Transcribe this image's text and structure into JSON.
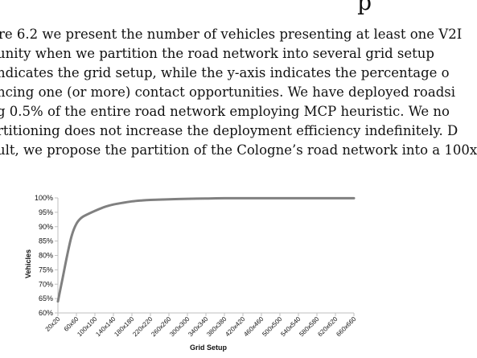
{
  "page": {
    "header_fragment": "p",
    "lines": [
      "re 6.2 we present the number of vehicles presenting at least one V2I",
      "unity when we partition the road network into several grid setup",
      "ndicates the grid setup, while the y-axis indicates the percentage o",
      "ncing one (or more) contact opportunities.  We have deployed roadsi",
      "g 0.5% of the entire road network employing MCP heuristic.  We no",
      "rtitioning does not increase the deployment efficiency indefinitely.  D",
      "ult, we propose the partition of the Cologne’s road network into a 100x"
    ]
  },
  "chart_data": {
    "type": "line",
    "xlabel": "Grid Setup",
    "ylabel": "Vehicles",
    "categories": [
      "20x20",
      "60x60",
      "100x100",
      "140x140",
      "180x180",
      "220x220",
      "260x260",
      "300x300",
      "340x340",
      "380x380",
      "420x420",
      "460x460",
      "500x500",
      "540x540",
      "580x580",
      "620x620",
      "660x660"
    ],
    "y_ticks": [
      "60%",
      "65%",
      "70%",
      "75%",
      "80%",
      "85%",
      "90%",
      "95%",
      "100%"
    ],
    "ylim": [
      60,
      100
    ],
    "series": [
      {
        "x": [
          20,
          30,
          40,
          50,
          60,
          70,
          80,
          100,
          120,
          140,
          160,
          180,
          200,
          220,
          260,
          300,
          340,
          380,
          420,
          460,
          500,
          540,
          580,
          620,
          660
        ],
        "values": [
          64,
          72,
          80,
          87,
          91,
          93,
          94,
          95.5,
          96.8,
          97.7,
          98.3,
          98.8,
          99.1,
          99.3,
          99.5,
          99.7,
          99.8,
          99.9,
          99.9,
          99.9,
          99.9,
          99.9,
          99.9,
          99.9,
          99.9
        ]
      }
    ],
    "grid": false,
    "legend": "none",
    "line_color": "#808080",
    "axis_color": "#bfbfbf"
  }
}
